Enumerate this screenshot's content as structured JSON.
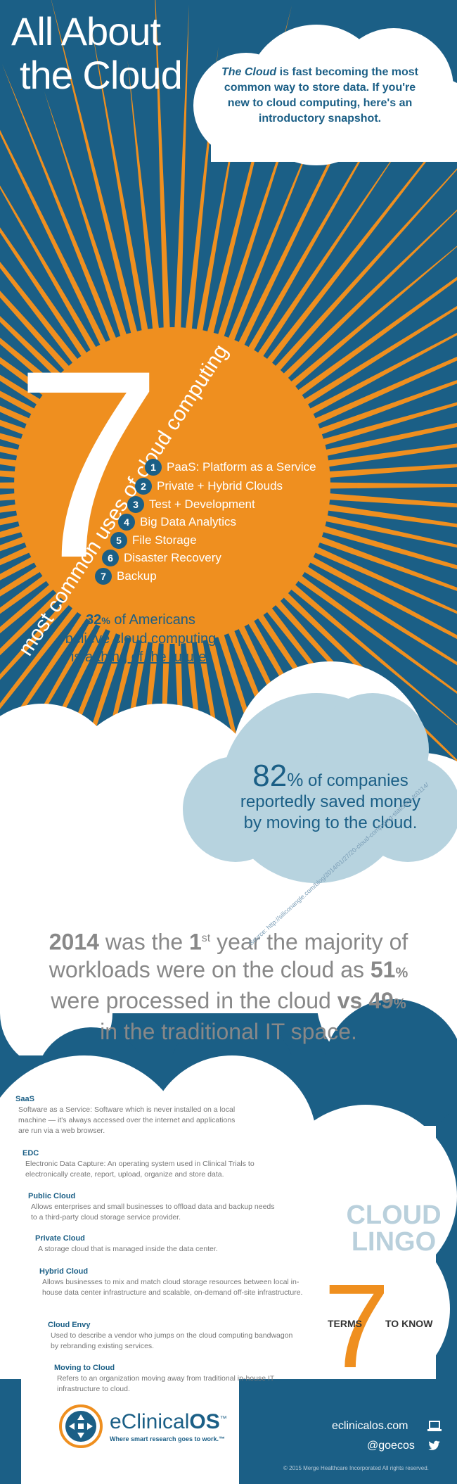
{
  "header": {
    "title_line1": "All About",
    "title_line2": "the Cloud",
    "intro_em": "The Cloud",
    "intro_rest": "is fast becoming the most common way to store data. If you're new to cloud computing, here's an introductory snapshot."
  },
  "uses": {
    "big_number": "7",
    "caption": "most common uses of cloud computing",
    "items": [
      {
        "num": "1",
        "label": "PaaS: Platform as a Service"
      },
      {
        "num": "2",
        "label": "Private + Hybrid Clouds"
      },
      {
        "num": "3",
        "label": "Test + Development"
      },
      {
        "num": "4",
        "label": "Big Data Analytics"
      },
      {
        "num": "5",
        "label": "File Storage"
      },
      {
        "num": "6",
        "label": "Disaster Recovery"
      },
      {
        "num": "7",
        "label": "Backup"
      }
    ]
  },
  "future_stat": {
    "value": "32",
    "unit": "%",
    "line1": "of Americans",
    "line2": "believe cloud computing",
    "line3_pre": "is a",
    "line3_link": "thing of the future."
  },
  "savings_stat": {
    "value": "82",
    "unit": "%",
    "line1": "of companies",
    "line2": "reportedly saved money",
    "line3": "by moving to the cloud."
  },
  "workloads_stat": {
    "year": "2014",
    "t1": "was the",
    "first": "1",
    "first_sup": "st",
    "t2": "year the majority of workloads were on the cloud as",
    "p1": "51",
    "p1_unit": "%",
    "t3": "were processed in the cloud",
    "vs": "vs",
    "p2": "49",
    "p2_unit": "%",
    "t4": "in the traditional IT space."
  },
  "source": "Source: http://siliconangle.com/blog/2014/01/27/20-cloud-computing-statistics-tc0114/",
  "lingo": {
    "heading_line1": "CLOUD",
    "heading_line2": "LINGO",
    "seven": "7",
    "terms_left": "TERMS",
    "terms_right": "TO KNOW",
    "terms": [
      {
        "name": "SaaS",
        "desc": "Software as a Service: Software which is never installed on a local machine — it's always accessed over the internet and applications are run via a web browser."
      },
      {
        "name": "EDC",
        "desc": "Electronic Data Capture: An operating system used in Clinical Trials to electronically create, report, upload, organize and store data."
      },
      {
        "name": "Public Cloud",
        "desc": "Allows enterprises and small businesses to offload data and backup needs to a third-party cloud storage service provider."
      },
      {
        "name": "Private Cloud",
        "desc": "A storage cloud that is managed inside the data center."
      },
      {
        "name": "Hybrid Cloud",
        "desc": "Allows businesses to mix and match cloud storage resources between local in-house data center infrastructure and scalable, on-demand off-site infrastructure."
      },
      {
        "name": "Cloud Envy",
        "desc": "Used to describe a vendor who jumps on the cloud computing bandwagon by rebranding existing services."
      },
      {
        "name": "Moving to Cloud",
        "desc": "Refers to an organization moving away from traditional in-house IT infrastructure to cloud."
      }
    ]
  },
  "footer": {
    "brand_pre": "eClinical",
    "brand_bold": "OS",
    "brand_tm": "™",
    "tagline": "Where smart research goes to work.™",
    "website": "eclinicalos.com",
    "twitter": "@goecos",
    "copyright": "© 2015 Merge Healthcare Incorporated All rights reserved."
  },
  "colors": {
    "blue": "#1b5f86",
    "orange": "#ef8f1f",
    "light_blue": "#b7d3df",
    "gray": "#888888"
  },
  "icons": [
    "laptop-icon",
    "twitter-bird-icon",
    "logo-icon"
  ]
}
